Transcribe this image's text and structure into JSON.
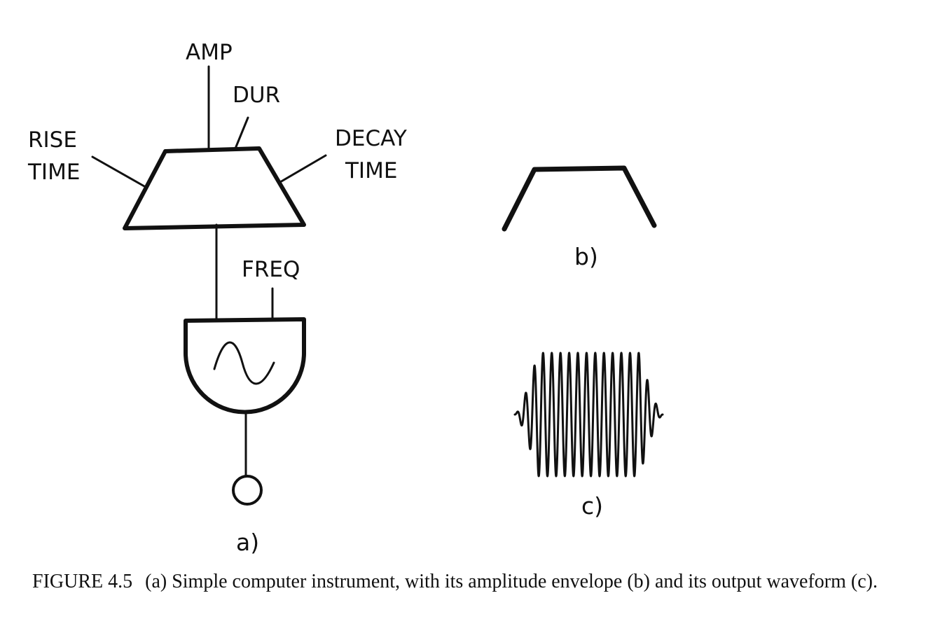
{
  "diagram_a": {
    "labels": {
      "amp": "AMP",
      "dur": "DUR",
      "rise_line1": "RISE",
      "rise_line2": "TIME",
      "decay_line1": "DECAY",
      "decay_line2": "TIME",
      "freq": "FREQ"
    },
    "sublabel": "a)"
  },
  "diagram_b": {
    "sublabel": "b)"
  },
  "diagram_c": {
    "sublabel": "c)"
  },
  "caption": {
    "figure_number": "FIGURE 4.5",
    "text": "(a) Simple computer instrument, with its amplitude envelope (b) and its output waveform (c)."
  }
}
